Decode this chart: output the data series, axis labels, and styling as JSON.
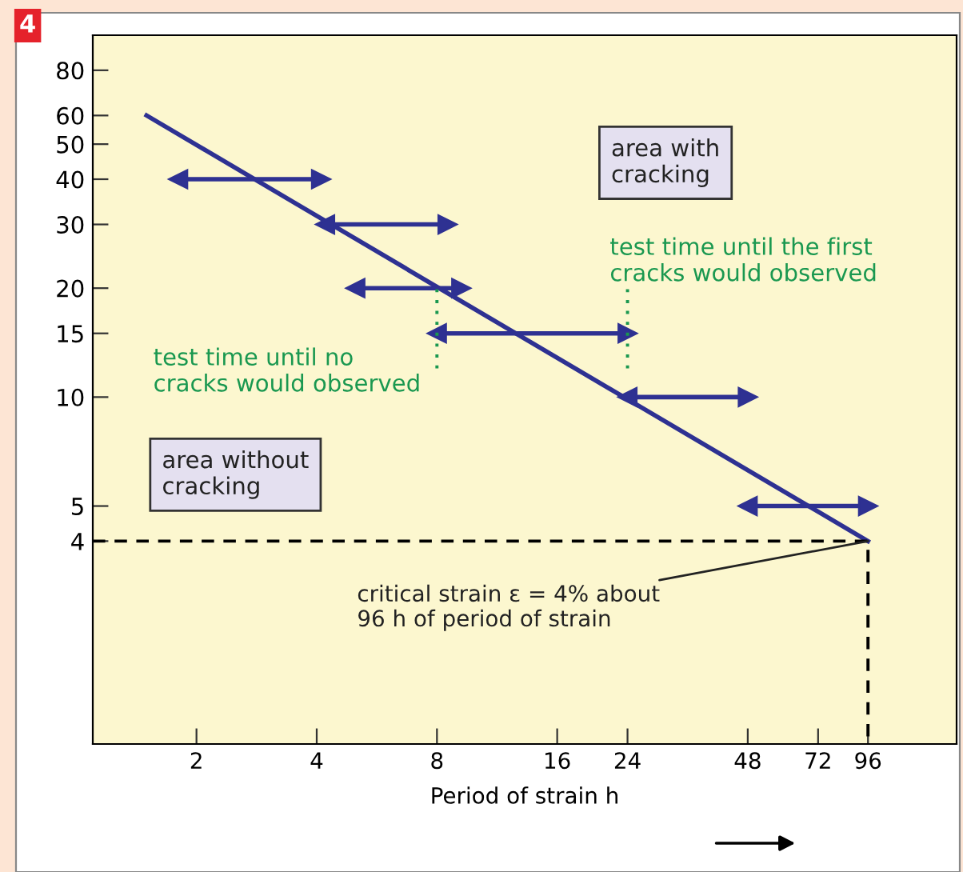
{
  "chart_data": {
    "type": "line",
    "xlabel": "Period of strain h",
    "log": "xy",
    "xlim": [
      1.1,
      160
    ],
    "ylim": [
      1.1,
      100
    ],
    "xticks": [
      2,
      4,
      8,
      16,
      24,
      48,
      72,
      96
    ],
    "yticks": [
      4,
      5,
      10,
      15,
      20,
      30,
      40,
      50,
      60,
      80
    ],
    "grid": false,
    "series": [
      {
        "color": "#2e3192",
        "x": [
          1.5,
          96
        ],
        "values": [
          60,
          4
        ],
        "line_style": "solid"
      },
      {
        "color": "#2e3192",
        "x": [
          1.8,
          4.1
        ],
        "values": [
          40,
          40
        ],
        "marker": "triangle"
      },
      {
        "color": "#2e3192",
        "x": [
          4.2,
          8.5
        ],
        "values": [
          30,
          30
        ],
        "marker": "triangle"
      },
      {
        "color": "#2e3192",
        "x": [
          5,
          9.2
        ],
        "values": [
          20,
          20
        ],
        "marker": "triangle"
      },
      {
        "color": "#2e3192",
        "x": [
          8,
          24
        ],
        "values": [
          15,
          15
        ],
        "marker": "triangle"
      },
      {
        "color": "#2e3192",
        "x": [
          24,
          48
        ],
        "values": [
          10,
          10
        ],
        "marker": "triangle"
      },
      {
        "color": "#2e3192",
        "x": [
          48,
          96
        ],
        "values": [
          5,
          5
        ],
        "marker": "triangle"
      },
      {
        "color": "#1a9850",
        "x": [
          8,
          8
        ],
        "values": [
          12,
          20
        ],
        "line_style": "dotted"
      },
      {
        "color": "#1a9850",
        "x": [
          24,
          24
        ],
        "values": [
          12,
          20
        ],
        "line_style": "dotted"
      },
      {
        "color": "#000000",
        "x": [
          1.1,
          96,
          96
        ],
        "values": [
          4,
          4,
          1.1
        ],
        "line_style": "dashed"
      }
    ],
    "annotations": [
      "4",
      "area with cracking",
      "area without cracking",
      {
        "text": "test time until the first cracks would observed",
        "x": 24,
        "y": 20
      },
      "test time until no cracks would observed",
      {
        "text": "critical strain ε = 4% about 96 h of period of strain",
        "x": 96,
        "y": 4
      }
    ]
  }
}
